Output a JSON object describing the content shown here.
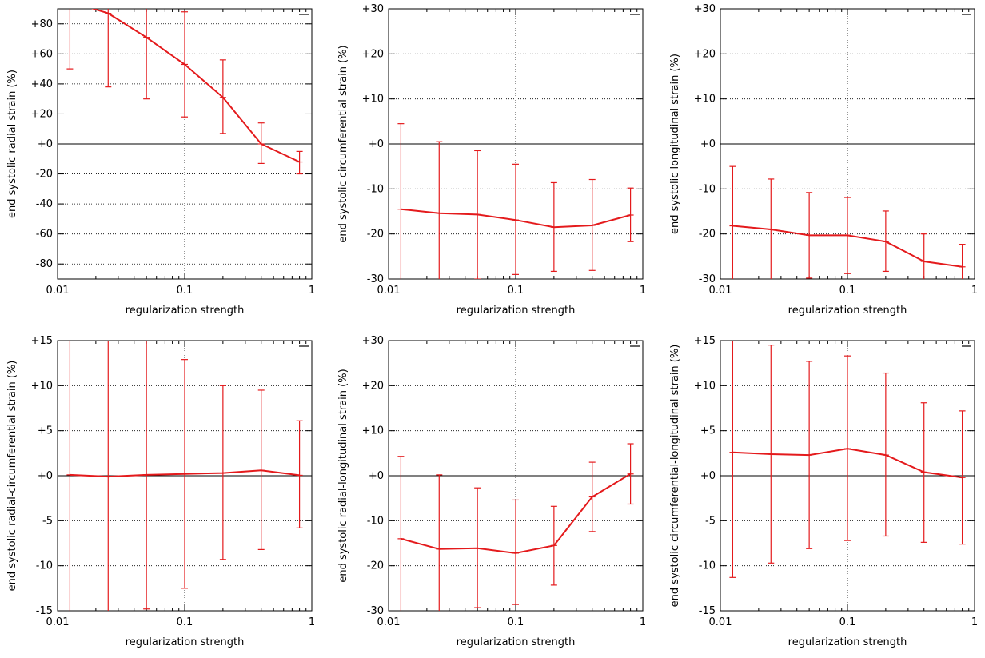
{
  "colors": {
    "series": "#e41a1c",
    "grid": "#000000",
    "frame": "#000000"
  },
  "chart_data": [
    {
      "type": "line",
      "xscale": "log",
      "xlim": [
        0.01,
        1
      ],
      "ylim": [
        -90,
        90
      ],
      "xticks": [
        0.01,
        0.1,
        1
      ],
      "xticklabels": [
        "0.01",
        "0.1",
        "1"
      ],
      "yticks": [
        -80,
        -60,
        -40,
        -20,
        0,
        20,
        40,
        60,
        80
      ],
      "yticklabels": [
        "-80",
        "-60",
        "-40",
        "-20",
        "+0",
        "+20",
        "+40",
        "+60",
        "+80"
      ],
      "xlabel": "regularization strength",
      "ylabel": "end systolic radial strain (%)",
      "grid": true,
      "zero_line": true,
      "series": [
        {
          "x": [
            0.0125,
            0.025,
            0.05,
            0.1,
            0.2,
            0.4,
            0.8
          ],
          "y": [
            95,
            87,
            71,
            53,
            31,
            0,
            -12
          ],
          "yerr_low": [
            50,
            38,
            30,
            18,
            7,
            -13,
            -20
          ],
          "yerr_high": [
            140,
            136,
            112,
            88,
            56,
            14,
            -5
          ]
        }
      ]
    },
    {
      "type": "line",
      "xscale": "log",
      "xlim": [
        0.01,
        1
      ],
      "ylim": [
        -30,
        30
      ],
      "xticks": [
        0.01,
        0.1,
        1
      ],
      "xticklabels": [
        "0.01",
        "0.1",
        "1"
      ],
      "yticks": [
        -30,
        -20,
        -10,
        0,
        10,
        20,
        30
      ],
      "yticklabels": [
        "-30",
        "-20",
        "-10",
        "+0",
        "+10",
        "+20",
        "+30"
      ],
      "xlabel": "regularization strength",
      "ylabel": "end systolic circumferential strain (%)",
      "grid": true,
      "zero_line": true,
      "series": [
        {
          "x": [
            0.0125,
            0.025,
            0.05,
            0.1,
            0.2,
            0.4,
            0.8
          ],
          "y": [
            -14.5,
            -15.4,
            -15.7,
            -16.9,
            -18.5,
            -18.1,
            -15.8
          ],
          "yerr_low": [
            -33.5,
            -31.2,
            -30,
            -29,
            -28.3,
            -28.1,
            -21.7
          ],
          "yerr_high": [
            4.5,
            0.5,
            -1.5,
            -4.5,
            -8.6,
            -7.9,
            -9.8
          ]
        }
      ]
    },
    {
      "type": "line",
      "xscale": "log",
      "xlim": [
        0.01,
        1
      ],
      "ylim": [
        -30,
        30
      ],
      "xticks": [
        0.01,
        0.1,
        1
      ],
      "xticklabels": [
        "0.01",
        "0.1",
        "1"
      ],
      "yticks": [
        -30,
        -20,
        -10,
        0,
        10,
        20,
        30
      ],
      "yticklabels": [
        "-30",
        "-20",
        "-10",
        "+0",
        "+10",
        "+20",
        "+30"
      ],
      "xlabel": "regularization strength",
      "ylabel": "end systolic longitudinal strain (%)",
      "grid": true,
      "zero_line": true,
      "series": [
        {
          "x": [
            0.0125,
            0.025,
            0.05,
            0.1,
            0.2,
            0.4,
            0.8
          ],
          "y": [
            -18.2,
            -19,
            -20.3,
            -20.3,
            -21.7,
            -26.1,
            -27.3
          ],
          "yerr_low": [
            -31.5,
            -31,
            -29.8,
            -28.8,
            -28.3,
            -32,
            -32.3
          ],
          "yerr_high": [
            -5,
            -7.8,
            -10.8,
            -11.9,
            -14.9,
            -20,
            -22.3
          ]
        }
      ]
    },
    {
      "type": "line",
      "xscale": "log",
      "xlim": [
        0.01,
        1
      ],
      "ylim": [
        -15,
        15
      ],
      "xticks": [
        0.01,
        0.1,
        1
      ],
      "xticklabels": [
        "0.01",
        "0.1",
        "1"
      ],
      "yticks": [
        -15,
        -10,
        -5,
        0,
        5,
        10,
        15
      ],
      "yticklabels": [
        "-15",
        "-10",
        "-5",
        "+0",
        "+5",
        "+10",
        "+15"
      ],
      "xlabel": "regularization strength",
      "ylabel": "end systolic radial-circumferential strain (%)",
      "grid": true,
      "zero_line": true,
      "series": [
        {
          "x": [
            0.0125,
            0.025,
            0.05,
            0.1,
            0.2,
            0.4,
            0.8
          ],
          "y": [
            0.1,
            -0.1,
            0.1,
            0.2,
            0.3,
            0.6,
            0.05
          ],
          "yerr_low": [
            -17,
            -17,
            -14.8,
            -12.5,
            -9.3,
            -8.2,
            -5.8
          ],
          "yerr_high": [
            17,
            17,
            16,
            12.9,
            10,
            9.5,
            6.1
          ]
        }
      ]
    },
    {
      "type": "line",
      "xscale": "log",
      "xlim": [
        0.01,
        1
      ],
      "ylim": [
        -30,
        30
      ],
      "xticks": [
        0.01,
        0.1,
        1
      ],
      "xticklabels": [
        "0.01",
        "0.1",
        "1"
      ],
      "yticks": [
        -30,
        -20,
        -10,
        0,
        10,
        20,
        30
      ],
      "yticklabels": [
        "-30",
        "-20",
        "-10",
        "+0",
        "+10",
        "+20",
        "+30"
      ],
      "xlabel": "regularization strength",
      "ylabel": "end systolic radial-longitudinal strain (%)",
      "grid": true,
      "zero_line": true,
      "series": [
        {
          "x": [
            0.0125,
            0.025,
            0.05,
            0.1,
            0.2,
            0.4,
            0.8
          ],
          "y": [
            -14,
            -16.3,
            -16.1,
            -17.2,
            -15.5,
            -4.7,
            0.4
          ],
          "yerr_low": [
            -33,
            -33.5,
            -29.3,
            -28.6,
            -24.3,
            -12.4,
            -6.3
          ],
          "yerr_high": [
            4.3,
            0.2,
            -2.7,
            -5.4,
            -6.8,
            3,
            7.1
          ]
        }
      ]
    },
    {
      "type": "line",
      "xscale": "log",
      "xlim": [
        0.01,
        1
      ],
      "ylim": [
        -15,
        15
      ],
      "xticks": [
        0.01,
        0.1,
        1
      ],
      "xticklabels": [
        "0.01",
        "0.1",
        "1"
      ],
      "yticks": [
        -15,
        -10,
        -5,
        0,
        5,
        10,
        15
      ],
      "yticklabels": [
        "-15",
        "-10",
        "-5",
        "+0",
        "+5",
        "+10",
        "+15"
      ],
      "xlabel": "regularization strength",
      "ylabel": "end systolic circumferential-longitudinal strain (%)",
      "grid": true,
      "zero_line": true,
      "series": [
        {
          "x": [
            0.0125,
            0.025,
            0.05,
            0.1,
            0.2,
            0.4,
            0.8
          ],
          "y": [
            2.6,
            2.4,
            2.3,
            3.0,
            2.3,
            0.4,
            -0.2
          ],
          "yerr_low": [
            -11.3,
            -9.7,
            -8.1,
            -7.2,
            -6.7,
            -7.4,
            -7.6
          ],
          "yerr_high": [
            16.5,
            14.5,
            12.7,
            13.3,
            11.4,
            8.1,
            7.2
          ]
        }
      ]
    }
  ]
}
